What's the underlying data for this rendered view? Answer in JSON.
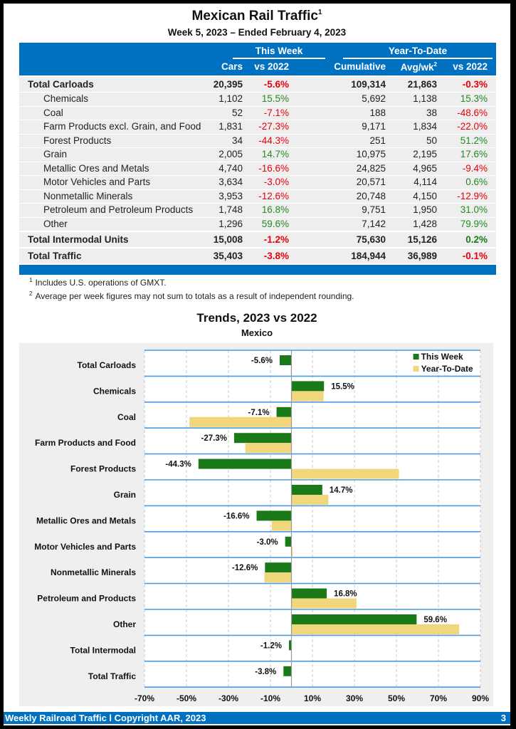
{
  "header": {
    "title": "Mexican Rail Traffic",
    "title_footnote": "1",
    "subtitle": "Week 5, 2023 – Ended February 4, 2023"
  },
  "table": {
    "group_headers": {
      "this_week": "This Week",
      "ytd": "Year-To-Date"
    },
    "columns": {
      "cars": "Cars",
      "vs2022_week": "vs 2022",
      "cumulative": "Cumulative",
      "avg": "Avg/wk",
      "avg_footnote": "2",
      "vs2022_ytd": "vs 2022"
    },
    "rows": [
      {
        "label": "Total Carloads",
        "type": "total",
        "cars": "20,395",
        "wk_pct": "-5.6%",
        "cum": "109,314",
        "avg": "21,863",
        "ytd_pct": "-0.3%"
      },
      {
        "label": "Chemicals",
        "type": "sub",
        "cars": "1,102",
        "wk_pct": "15.5%",
        "cum": "5,692",
        "avg": "1,138",
        "ytd_pct": "15.3%"
      },
      {
        "label": "Coal",
        "type": "sub",
        "cars": "52",
        "wk_pct": "-7.1%",
        "cum": "188",
        "avg": "38",
        "ytd_pct": "-48.6%"
      },
      {
        "label": "Farm Products excl. Grain, and Food",
        "type": "sub",
        "cars": "1,831",
        "wk_pct": "-27.3%",
        "cum": "9,171",
        "avg": "1,834",
        "ytd_pct": "-22.0%"
      },
      {
        "label": "Forest Products",
        "type": "sub",
        "cars": "34",
        "wk_pct": "-44.3%",
        "cum": "251",
        "avg": "50",
        "ytd_pct": "51.2%"
      },
      {
        "label": "Grain",
        "type": "sub",
        "cars": "2,005",
        "wk_pct": "14.7%",
        "cum": "10,975",
        "avg": "2,195",
        "ytd_pct": "17.6%"
      },
      {
        "label": "Metallic Ores and Metals",
        "type": "sub",
        "cars": "4,740",
        "wk_pct": "-16.6%",
        "cum": "24,825",
        "avg": "4,965",
        "ytd_pct": "-9.4%"
      },
      {
        "label": "Motor Vehicles and Parts",
        "type": "sub",
        "cars": "3,634",
        "wk_pct": "-3.0%",
        "cum": "20,571",
        "avg": "4,114",
        "ytd_pct": "0.6%"
      },
      {
        "label": "Nonmetallic Minerals",
        "type": "sub",
        "cars": "3,953",
        "wk_pct": "-12.6%",
        "cum": "20,748",
        "avg": "4,150",
        "ytd_pct": "-12.9%"
      },
      {
        "label": "Petroleum and Petroleum Products",
        "type": "sub",
        "cars": "1,748",
        "wk_pct": "16.8%",
        "cum": "9,751",
        "avg": "1,950",
        "ytd_pct": "31.0%"
      },
      {
        "label": "Other",
        "type": "sub",
        "cars": "1,296",
        "wk_pct": "59.6%",
        "cum": "7,142",
        "avg": "1,428",
        "ytd_pct": "79.9%"
      },
      {
        "label": "Total Intermodal Units",
        "type": "total",
        "cars": "15,008",
        "wk_pct": "-1.2%",
        "cum": "75,630",
        "avg": "15,126",
        "ytd_pct": "0.2%"
      },
      {
        "label": "Total Traffic",
        "type": "total",
        "cars": "35,403",
        "wk_pct": "-3.8%",
        "cum": "184,944",
        "avg": "36,989",
        "ytd_pct": "-0.1%"
      }
    ]
  },
  "footnotes": [
    {
      "mark": "1",
      "text": "Includes U.S. operations of GMXT."
    },
    {
      "mark": "2",
      "text": "Average per week figures may not sum to totals as a result of independent rounding."
    }
  ],
  "chart_data": {
    "type": "bar",
    "orientation": "horizontal",
    "title": "Trends, 2023 vs 2022",
    "subtitle": "Mexico",
    "categories": [
      "Total Carloads",
      "Chemicals",
      "Coal",
      "Farm Products and Food",
      "Forest Products",
      "Grain",
      "Metallic Ores and Metals",
      "Motor Vehicles and Parts",
      "Nonmetallic Minerals",
      "Petroleum and Products",
      "Other",
      "Total Intermodal",
      "Total Traffic"
    ],
    "series": [
      {
        "name": "This Week",
        "color": "#1a7a1a",
        "values": [
          -5.6,
          15.5,
          -7.1,
          -27.3,
          -44.3,
          14.7,
          -16.6,
          -3.0,
          -12.6,
          16.8,
          59.6,
          -1.2,
          -3.8
        ],
        "data_labels": [
          "-5.6%",
          "15.5%",
          "-7.1%",
          "-27.3%",
          "-44.3%",
          "14.7%",
          "-16.6%",
          "-3.0%",
          "-12.6%",
          "16.8%",
          "59.6%",
          "-1.2%",
          "-3.8%"
        ]
      },
      {
        "name": "Year-To-Date",
        "color": "#f2d67c",
        "values": [
          -0.3,
          15.3,
          -48.6,
          -22.0,
          51.2,
          17.6,
          -9.4,
          0.6,
          -12.9,
          31.0,
          79.9,
          0.2,
          -0.1
        ]
      }
    ],
    "xlim": [
      -70,
      90
    ],
    "xticks": [
      "-70%",
      "-50%",
      "-30%",
      "-10%",
      "10%",
      "30%",
      "50%",
      "70%",
      "90%"
    ],
    "xtick_values": [
      -70,
      -50,
      -30,
      -10,
      10,
      30,
      50,
      70,
      90
    ],
    "grid": "vertical dashed",
    "legend": "top-right"
  },
  "footer": {
    "left": "Weekly Railroad Traffic l Copyright AAR, 2023",
    "page": "3"
  }
}
